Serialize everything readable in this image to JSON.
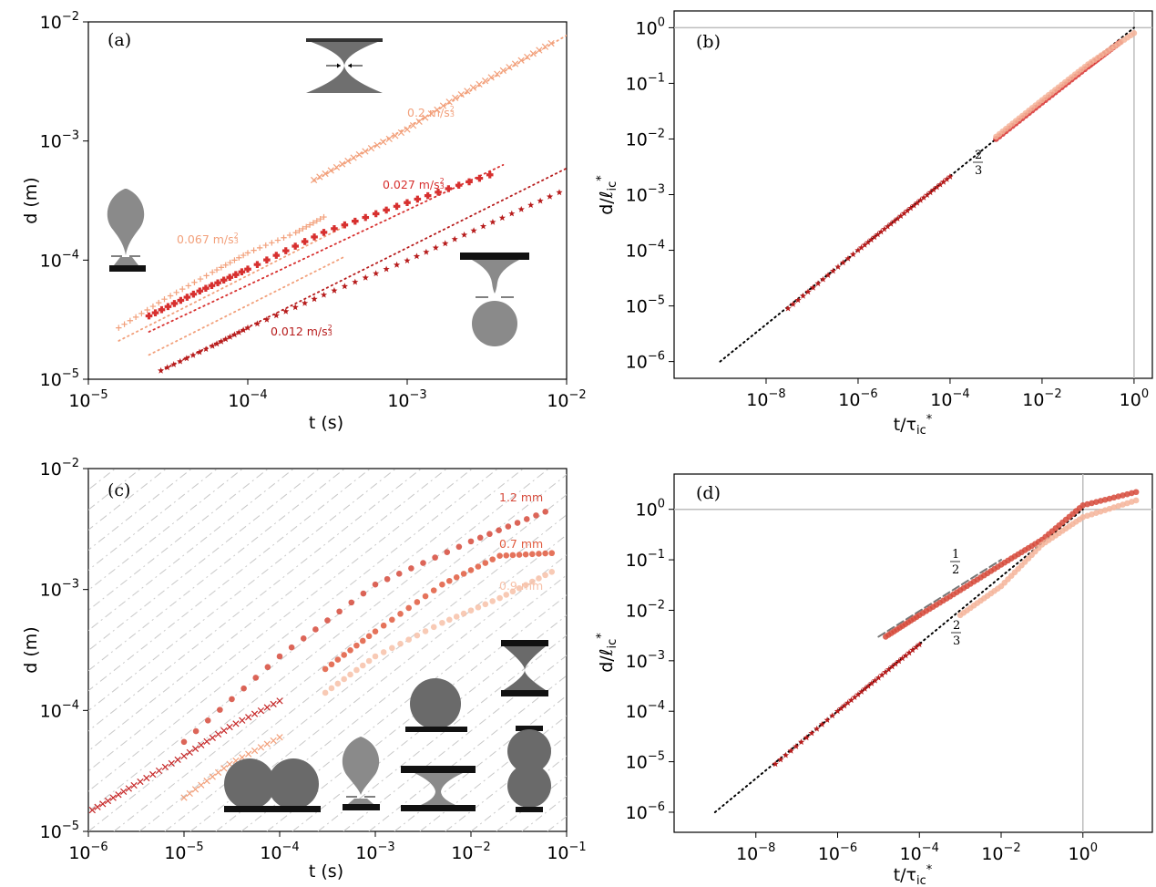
{
  "chart_data": [
    {
      "panel": "a",
      "type": "scatter",
      "panel_label": "(a)",
      "xlabel": "t (s)",
      "ylabel": "d (m)",
      "xscale": "log",
      "yscale": "log",
      "xlim": [
        1e-05,
        0.01
      ],
      "ylim": [
        1e-05,
        0.01
      ],
      "xticks": [
        1e-05,
        0.0001,
        0.001,
        0.01
      ],
      "yticks": [
        1e-05,
        0.0001,
        0.001,
        0.01
      ],
      "series": [
        {
          "name": "0.2 m/s^(2/3)",
          "label": "0.2 m/s",
          "color": "#f2a07b",
          "marker": "x",
          "x": [
            0.00026,
            0.0005,
            0.001,
            0.002,
            0.004,
            0.008
          ],
          "y": [
            0.00047,
            0.00077,
            0.00125,
            0.0023,
            0.0039,
            0.0066
          ]
        },
        {
          "name": "0.067 m/s^(2/3)",
          "label": "0.067 m/s",
          "color": "#f2a07b",
          "marker": "+",
          "x": [
            1.55e-05,
            3e-05,
            6e-05,
            0.0001,
            0.0002,
            0.0003
          ],
          "y": [
            2.7e-05,
            4.7e-05,
            7.9e-05,
            0.000115,
            0.00017,
            0.00023
          ]
        },
        {
          "name": "0.027 m/s^(2/3)",
          "label": "0.027 m/s",
          "color": "#d7302f",
          "marker": "P",
          "x": [
            2.4e-05,
            5e-05,
            0.0001,
            0.0003,
            0.001,
            0.0033
          ],
          "y": [
            3.4e-05,
            5.5e-05,
            8.4e-05,
            0.000171,
            0.000304,
            0.00052
          ]
        },
        {
          "name": "0.012 m/s^(2/3)",
          "label": "0.012 m/s",
          "color": "#b71c1c",
          "marker": "*",
          "x": [
            2.85e-05,
            6e-05,
            0.0001,
            0.0003,
            0.001,
            0.003,
            0.009
          ],
          "y": [
            1.18e-05,
            1.9e-05,
            2.7e-05,
            5.1e-05,
            9.9e-05,
            0.000192,
            0.00037
          ]
        }
      ],
      "fits": [
        {
          "color": "#f2a07b",
          "x": [
            0.00026,
            0.01
          ],
          "y": [
            0.00046,
            0.0077
          ]
        },
        {
          "color": "#f2a07b",
          "x": [
            1.55e-05,
            0.0004
          ],
          "y": [
            2.1e-05,
            0.00019
          ]
        },
        {
          "color": "#f2a07b",
          "x": [
            2.4e-05,
            0.0004
          ],
          "y": [
            1.6e-05,
            0.000106
          ]
        },
        {
          "color": "#d7302f",
          "x": [
            2.4e-05,
            0.004
          ],
          "y": [
            2.5e-05,
            0.00063
          ]
        },
        {
          "color": "#b71c1c",
          "x": [
            2.85e-05,
            0.01
          ],
          "y": [
            1.18e-05,
            0.00059
          ]
        }
      ]
    },
    {
      "panel": "b",
      "type": "scatter",
      "panel_label": "(b)",
      "xlabel": "t/τ*ic",
      "ylabel": "d/ℓ*ic",
      "xscale": "log",
      "yscale": "log",
      "xlim": [
        1e-10,
        2.5
      ],
      "ylim": [
        5e-07,
        2
      ],
      "xticks": [
        1e-08,
        1e-06,
        0.0001,
        0.01,
        1
      ],
      "yticks": [
        1e-06,
        1e-05,
        0.0001,
        0.001,
        0.01,
        0.1,
        1
      ],
      "slope_label": "2/3",
      "reference_line": {
        "x": [
          1e-09,
          1
        ],
        "y": [
          1e-06,
          1
        ]
      },
      "series": [
        {
          "color": "#b71c1c",
          "x": [
            3e-08,
            1e-06,
            1e-05,
            0.0001
          ],
          "y": [
            9e-06,
            0.0001,
            0.00046,
            0.0021
          ]
        },
        {
          "color": "#d7302f",
          "x": [
            0.001,
            0.01,
            0.1,
            0.5
          ],
          "y": [
            0.01,
            0.045,
            0.2,
            0.55
          ]
        },
        {
          "color": "#f4b49a",
          "x": [
            0.001,
            0.01,
            0.1,
            1.0
          ],
          "y": [
            0.011,
            0.05,
            0.22,
            0.8
          ]
        }
      ]
    },
    {
      "panel": "c",
      "type": "scatter",
      "panel_label": "(c)",
      "xlabel": "t (s)",
      "ylabel": "d (m)",
      "xscale": "log",
      "yscale": "log",
      "xlim": [
        1e-06,
        0.1
      ],
      "ylim": [
        1e-05,
        0.01
      ],
      "xticks": [
        1e-06,
        1e-05,
        0.0001,
        0.001,
        0.01,
        0.1
      ],
      "yticks": [
        1e-05,
        0.0001,
        0.001,
        0.01
      ],
      "series": [
        {
          "name": "1.2 mm",
          "label": "1.2 mm",
          "color": "#d64a3b",
          "marker": "o",
          "x": [
            1e-05,
            0.0001,
            0.001,
            0.01,
            0.06
          ],
          "y": [
            5.5e-05,
            0.00028,
            0.0011,
            0.0025,
            0.0044
          ]
        },
        {
          "name": "0.7 mm",
          "label": "0.7 mm",
          "color": "#e05a3e",
          "marker": "o",
          "x": [
            0.0003,
            0.001,
            0.005,
            0.02,
            0.07
          ],
          "y": [
            0.00022,
            0.00045,
            0.0011,
            0.0019,
            0.002
          ]
        },
        {
          "name": "0.9 mm",
          "label": "0.9 mm",
          "color": "#f7c1a8",
          "marker": "o",
          "x": [
            0.0003,
            0.001,
            0.005,
            0.02,
            0.07
          ],
          "y": [
            0.00014,
            0.00028,
            0.00053,
            0.00085,
            0.0014
          ]
        },
        {
          "color": "#c62828",
          "marker": "x",
          "x": [
            1.1e-06,
            3e-06,
            1e-05,
            3e-05,
            0.0001
          ],
          "y": [
            1.5e-05,
            2.4e-05,
            4.2e-05,
            7.3e-05,
            0.00012
          ]
        },
        {
          "color": "#f2a07b",
          "marker": "x",
          "x": [
            1e-05,
            3e-05,
            0.0001
          ],
          "y": [
            1.9e-05,
            3.6e-05,
            6e-05
          ]
        }
      ]
    },
    {
      "panel": "d",
      "type": "scatter",
      "panel_label": "(d)",
      "xlabel": "t/τ*ic",
      "ylabel": "d/ℓ*ic",
      "xscale": "log",
      "yscale": "log",
      "xlim": [
        1e-10,
        50
      ],
      "ylim": [
        4e-07,
        5
      ],
      "xticks": [
        1e-08,
        1e-06,
        0.0001,
        0.01,
        1
      ],
      "yticks": [
        1e-06,
        1e-05,
        0.0001,
        0.001,
        0.01,
        0.1,
        1
      ],
      "slope_labels": [
        "1/2",
        "2/3"
      ],
      "reference_lines": [
        {
          "x": [
            1e-09,
            1
          ],
          "y": [
            1e-06,
            1
          ]
        },
        {
          "x": [
            1e-05,
            0.01
          ],
          "y": [
            0.003,
            0.1
          ]
        }
      ],
      "series": [
        {
          "color": "#b71c1c",
          "x": [
            3e-08,
            1e-06,
            1e-05,
            0.0001
          ],
          "y": [
            9e-06,
            0.0001,
            0.00046,
            0.0021
          ]
        },
        {
          "color": "#d64a3b",
          "x": [
            1.5e-05,
            0.0001,
            0.001,
            0.01,
            0.1,
            1.0,
            20.0
          ],
          "y": [
            0.003,
            0.008,
            0.025,
            0.08,
            0.25,
            1.2,
            2.2
          ]
        },
        {
          "color": "#f4b49a",
          "x": [
            0.001,
            0.01,
            0.1,
            1.0,
            20.0
          ],
          "y": [
            0.008,
            0.03,
            0.2,
            0.7,
            1.5
          ]
        }
      ]
    }
  ],
  "annotations": {
    "a_02": "0.2 m/s",
    "a_0067": "0.067 m/s",
    "a_0027": "0.027 m/s",
    "a_0012": "0.012 m/s",
    "c_12": "1.2 mm",
    "c_07": "0.7 mm",
    "c_09": "0.9 mm",
    "slope_23": "2",
    "slope_23_den": "3",
    "slope_12": "1",
    "slope_12_den": "2"
  },
  "colors": {
    "dark_red": "#b71c1c",
    "red": "#d7302f",
    "salmon": "#f2a07b",
    "light": "#f7c1a8",
    "drop_gray": "#8a8a8a",
    "gridline": "#c8c8c8"
  }
}
